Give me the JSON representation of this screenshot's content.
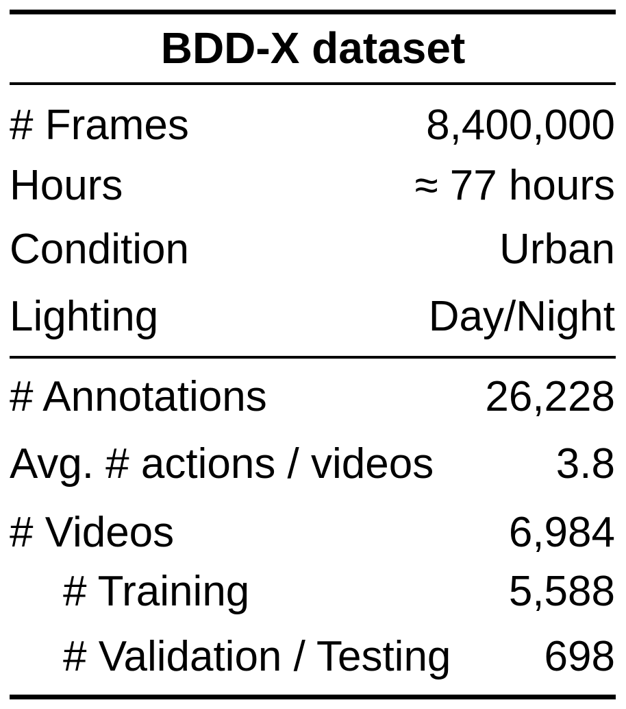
{
  "table": {
    "title": "BDD-X dataset",
    "rows": [
      {
        "label": "# Frames",
        "value": "8,400,000"
      },
      {
        "label": "Hours",
        "value": "≈ 77 hours"
      },
      {
        "label": "Condition",
        "value": "Urban"
      },
      {
        "label": "Lighting",
        "value": "Day/Night"
      },
      {
        "label": "# Annotations",
        "value": "26,228"
      },
      {
        "label": "Avg. # actions / videos",
        "value": "3.8"
      },
      {
        "label": "# Videos",
        "value": "6,984"
      },
      {
        "label": "# Training",
        "value": "5,588"
      },
      {
        "label": "# Validation / Testing",
        "value": "698"
      }
    ]
  }
}
